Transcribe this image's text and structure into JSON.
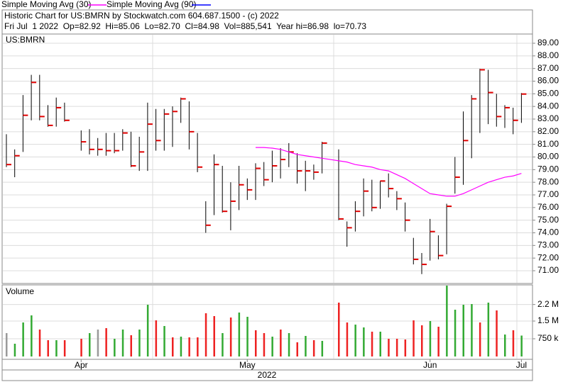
{
  "chart_data": {
    "type": "ohlc",
    "title": "Historic Chart for US:BMRN by Stockwatch.com 604.687.1500 - (c) 2022",
    "subtitle": "Fri Jul  1 2022  Op=82.92  Hi=85.06  Lo=82.70  Cl=84.98  Vol=885,541  Year hi=86.98  lo=70.73",
    "symbol": "US:BMRN",
    "x_label": "2022",
    "categories": [
      null,
      null,
      null,
      null,
      null,
      null,
      null,
      null,
      null,
      "Apr",
      null,
      null,
      null,
      null,
      null,
      null,
      null,
      null,
      null,
      null,
      null,
      null,
      null,
      null,
      null,
      null,
      null,
      null,
      null,
      "May",
      null,
      null,
      null,
      null,
      null,
      null,
      null,
      null,
      null,
      null,
      null,
      null,
      null,
      null,
      null,
      null,
      null,
      null,
      null,
      null,
      null,
      "Jun",
      null,
      null,
      null,
      null,
      null,
      null,
      null,
      null,
      null,
      null,
      "Jul"
    ],
    "high": [
      81.8,
      80.6,
      84.9,
      86.5,
      86.5,
      84.1,
      84.7,
      84.3,
      null,
      82.1,
      82.2,
      81.5,
      81.9,
      81.9,
      82.2,
      82.0,
      81.6,
      84.3,
      83.8,
      83.8,
      84.0,
      84.7,
      84.4,
      81.9,
      76.5,
      80.2,
      79.3,
      78.0,
      79.3,
      78.3,
      79.5,
      79.6,
      80.5,
      80.7,
      81.1,
      80.3,
      79.7,
      79.4,
      81.2,
      null,
      80.6,
      74.9,
      76.5,
      78.3,
      78.2,
      78.1,
      78.7,
      77.3,
      76.4,
      73.6,
      72.4,
      75.1,
      73.8,
      76.3,
      80.0,
      83.6,
      84.9,
      86.98,
      86.9,
      85.0,
      84.1,
      83.9,
      85.06
    ],
    "low": [
      79.2,
      78.4,
      80.4,
      82.9,
      82.9,
      82.4,
      82.4,
      82.8,
      null,
      80.5,
      80.2,
      80.1,
      80.1,
      80.3,
      80.5,
      79.2,
      78.9,
      78.9,
      80.5,
      80.5,
      80.8,
      82.7,
      80.6,
      78.8,
      74.0,
      75.4,
      75.6,
      74.2,
      75.8,
      76.6,
      76.6,
      77.7,
      78.0,
      78.3,
      79.2,
      77.9,
      77.3,
      78.2,
      78.7,
      null,
      75.0,
      72.9,
      74.1,
      75.3,
      75.7,
      75.9,
      76.8,
      75.8,
      74.1,
      71.5,
      70.73,
      71.8,
      71.9,
      72.3,
      77.1,
      77.8,
      79.9,
      81.9,
      82.6,
      82.4,
      82.3,
      81.8,
      82.7
    ],
    "close": [
      79.4,
      80.1,
      83.3,
      85.9,
      83.2,
      82.5,
      83.9,
      82.9,
      null,
      81.2,
      80.6,
      80.6,
      80.5,
      80.5,
      81.9,
      79.3,
      80.4,
      82.6,
      81.3,
      83.4,
      83.6,
      84.6,
      82.0,
      79.2,
      74.6,
      79.4,
      75.7,
      76.5,
      77.8,
      77.4,
      79.1,
      78.2,
      79.3,
      79.8,
      80.4,
      78.9,
      78.9,
      78.8,
      81.1,
      null,
      75.1,
      74.4,
      75.7,
      77.3,
      76.0,
      78.1,
      77.5,
      76.7,
      75.0,
      71.9,
      71.5,
      74.1,
      72.2,
      76.1,
      78.4,
      81.3,
      84.6,
      86.9,
      85.1,
      83.2,
      83.9,
      82.9,
      84.98
    ],
    "bar_color": "#000000",
    "close_color": "#e00000",
    "series": [
      {
        "name": "Simple Moving Avg (30)",
        "color": "#ff00ff",
        "values": [
          null,
          null,
          null,
          null,
          null,
          null,
          null,
          null,
          null,
          null,
          null,
          null,
          null,
          null,
          null,
          null,
          null,
          null,
          null,
          null,
          null,
          null,
          null,
          null,
          null,
          null,
          null,
          null,
          null,
          null,
          80.75,
          80.75,
          80.7,
          80.6,
          80.4,
          80.2,
          80.1,
          80.0,
          79.9,
          79.8,
          79.7,
          79.6,
          79.4,
          79.3,
          79.2,
          79.0,
          78.9,
          78.6,
          78.3,
          77.9,
          77.5,
          77.1,
          77.0,
          76.9,
          76.9,
          77.1,
          77.4,
          77.7,
          78.0,
          78.2,
          78.4,
          78.5,
          78.7
        ]
      },
      {
        "name": "Simple Moving Avg (90)",
        "color": "#0000ff",
        "values": [
          null,
          null,
          null,
          null,
          null,
          null,
          null,
          null,
          null,
          null,
          null,
          null,
          null,
          null,
          null,
          null,
          null,
          null,
          null,
          null,
          null,
          null,
          null,
          null,
          null,
          null,
          null,
          null,
          null,
          null,
          null,
          null,
          null,
          null,
          null,
          null,
          null,
          null,
          null,
          null,
          null,
          null,
          null,
          null,
          null,
          null,
          null,
          null,
          null,
          null,
          null,
          null,
          null,
          null,
          null,
          null,
          null,
          null,
          null,
          null,
          null,
          null,
          null
        ]
      }
    ],
    "ylim": [
      69.99,
      89.73
    ],
    "yticks": [
      {
        "value": 71,
        "label": "71.00"
      },
      {
        "value": 72,
        "label": "72.00"
      },
      {
        "value": 73,
        "label": "73.00"
      },
      {
        "value": 74,
        "label": "74.00"
      },
      {
        "value": 75,
        "label": "75.00"
      },
      {
        "value": 76,
        "label": "76.00"
      },
      {
        "value": 77,
        "label": "77.00"
      },
      {
        "value": 78,
        "label": "78.00"
      },
      {
        "value": 79,
        "label": "79.00"
      },
      {
        "value": 80,
        "label": "80.00"
      },
      {
        "value": 81,
        "label": "81.00"
      },
      {
        "value": 82,
        "label": "82.00"
      },
      {
        "value": 83,
        "label": "83.00"
      },
      {
        "value": 84,
        "label": "84.00"
      },
      {
        "value": 85,
        "label": "85.00"
      },
      {
        "value": 86,
        "label": "86.00"
      },
      {
        "value": 87,
        "label": "87.00"
      },
      {
        "value": 88,
        "label": "88.00"
      },
      {
        "value": 89,
        "label": "89.00"
      }
    ],
    "grid": true,
    "volume": {
      "title": "Volume",
      "values": [
        990000,
        540000,
        1440000,
        1740000,
        1140000,
        690000,
        690000,
        690000,
        null,
        750000,
        990000,
        1140000,
        1200000,
        750000,
        1140000,
        900000,
        1140000,
        2190000,
        1530000,
        1290000,
        810000,
        840000,
        810000,
        810000,
        1830000,
        1710000,
        990000,
        1650000,
        1860000,
        1680000,
        1110000,
        990000,
        840000,
        1140000,
        990000,
        600000,
        870000,
        690000,
        660000,
        null,
        2280000,
        1440000,
        1350000,
        1230000,
        1050000,
        1050000,
        750000,
        750000,
        720000,
        1530000,
        1320000,
        1500000,
        1260000,
        3000000,
        1980000,
        2190000,
        2220000,
        1440000,
        2280000,
        1950000,
        930000,
        1110000,
        885541
      ],
      "colors": [
        "#9a9a9a",
        "#33aa33",
        "#33aa33",
        "#33aa33",
        "#ee2222",
        "#ee2222",
        "#33aa33",
        "#ee2222",
        null,
        "#ee2222",
        "#33aa33",
        "#9a9a9a",
        "#ee2222",
        "#33aa33",
        "#33aa33",
        "#ee2222",
        "#33aa33",
        "#33aa33",
        "#ee2222",
        "#33aa33",
        "#ee2222",
        "#33aa33",
        "#ee2222",
        "#ee2222",
        "#ee2222",
        "#ee2222",
        "#33aa33",
        "#ee2222",
        "#33aa33",
        "#33aa33",
        "#ee2222",
        "#ee2222",
        "#33aa33",
        "#ee2222",
        "#33aa33",
        "#ee2222",
        "#33aa33",
        "#ee2222",
        "#33aa33",
        null,
        "#ee2222",
        "#ee2222",
        "#33aa33",
        "#33aa33",
        "#ee2222",
        "#33aa33",
        "#ee2222",
        "#ee2222",
        "#ee2222",
        "#ee2222",
        "#ee2222",
        "#33aa33",
        "#ee2222",
        "#33aa33",
        "#33aa33",
        "#33aa33",
        "#33aa33",
        "#ee2222",
        "#33aa33",
        "#ee2222",
        "#33aa33",
        "#ee2222",
        "#33aa33"
      ],
      "ylim": [
        0,
        3030000
      ],
      "yticks": [
        {
          "value": 750000,
          "label": "750 k"
        },
        {
          "value": 1500000,
          "label": "1.5 M"
        },
        {
          "value": 2200000,
          "label": "2.2 M"
        }
      ]
    }
  }
}
